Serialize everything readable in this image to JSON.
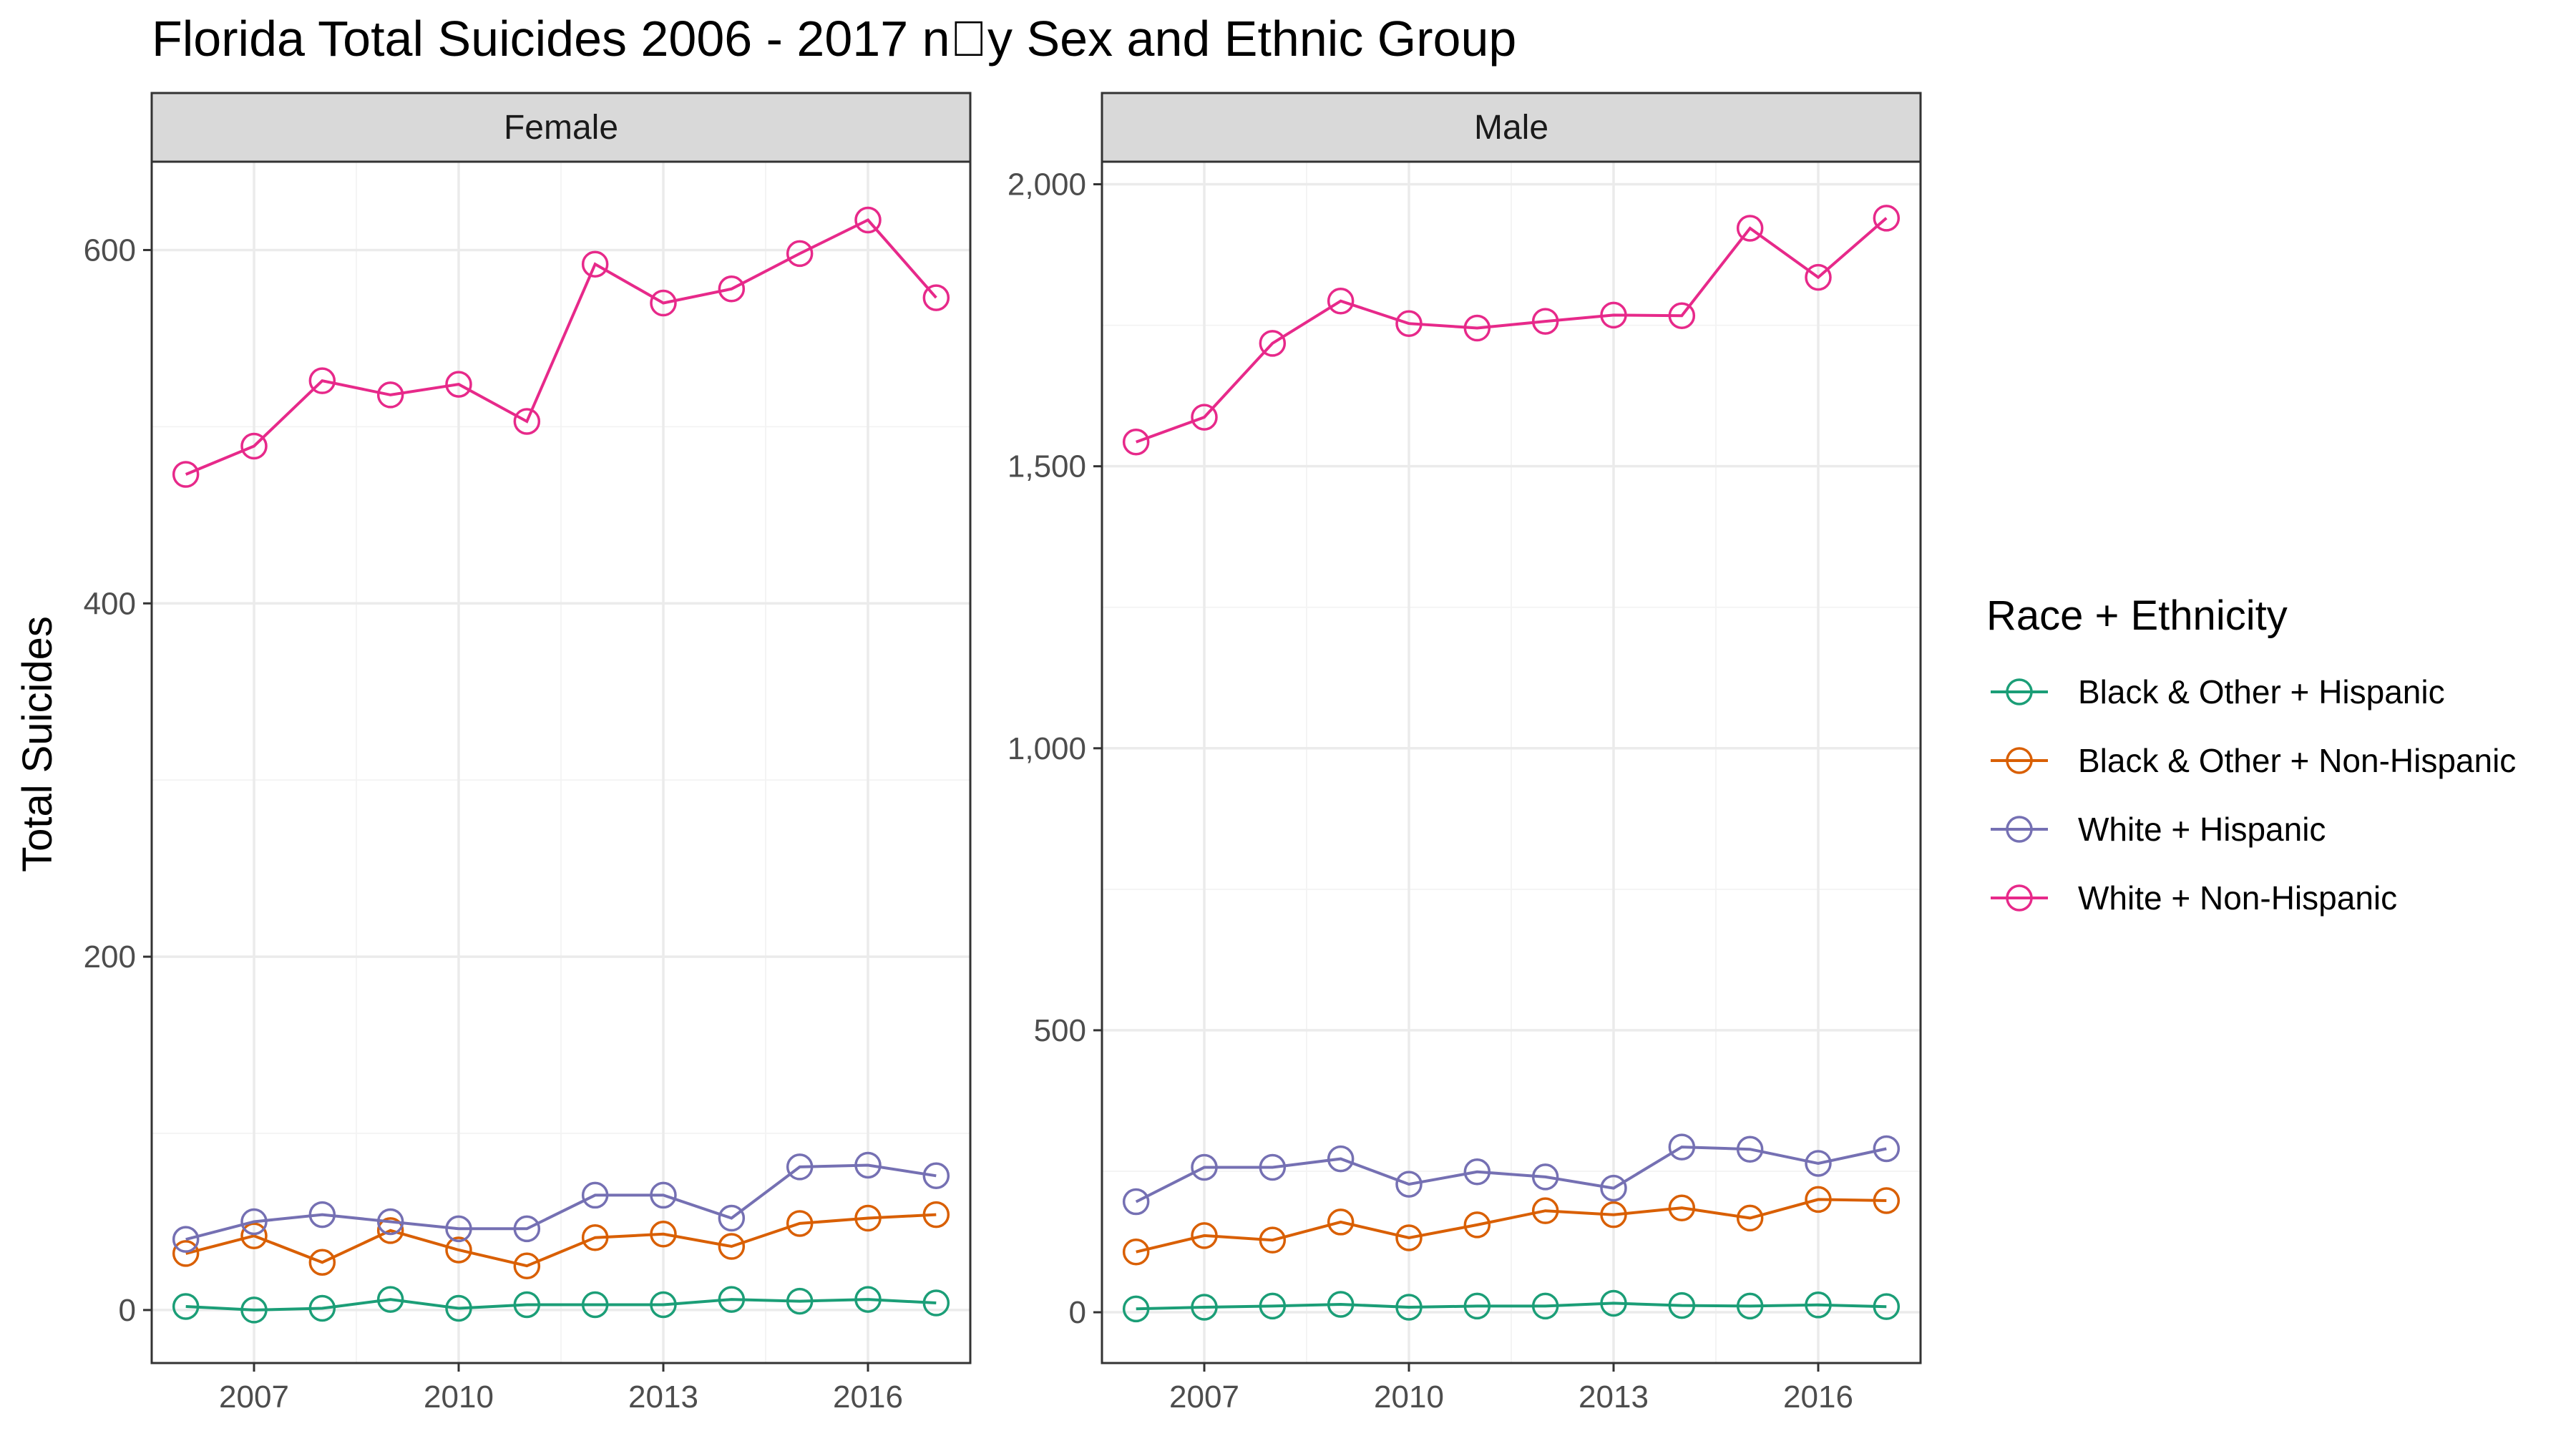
{
  "chart_data": {
    "type": "line",
    "title": "Florida Total Suicides 2006 - 2017 n\u0000y Sex and Ethnic Group",
    "ylabel": "Total Suicides",
    "xlabel": "",
    "x": [
      2006,
      2007,
      2008,
      2009,
      2010,
      2011,
      2012,
      2013,
      2014,
      2015,
      2016,
      2017
    ],
    "x_ticks": [
      2007,
      2010,
      2013,
      2016
    ],
    "x_tick_labels": [
      "2007",
      "2010",
      "2013",
      "2016"
    ],
    "xlim": [
      2005.5,
      2017.5
    ],
    "grid": true,
    "legend": {
      "title": "Race + Ethnicity",
      "position": "right",
      "entries": [
        {
          "name": "Black & Other + Hispanic",
          "color": "#1b9e77"
        },
        {
          "name": "Black & Other + Non-Hispanic",
          "color": "#d95f02"
        },
        {
          "name": "White + Hispanic",
          "color": "#7570b3"
        },
        {
          "name": "White + Non-Hispanic",
          "color": "#e7298a"
        }
      ]
    },
    "panels": [
      {
        "strip_label": "Female",
        "ylim": [
          -30,
          650
        ],
        "y_ticks": [
          0,
          200,
          400,
          600
        ],
        "y_tick_labels": [
          "0",
          "200",
          "400",
          "600"
        ],
        "series": [
          {
            "name": "Black & Other + Hispanic",
            "values": [
              2,
              0,
              1,
              6,
              1,
              3,
              3,
              3,
              6,
              5,
              6,
              4
            ]
          },
          {
            "name": "Black & Other + Non-Hispanic",
            "values": [
              32,
              42,
              27,
              45,
              34,
              25,
              41,
              43,
              36,
              49,
              52,
              54
            ]
          },
          {
            "name": "White + Hispanic",
            "values": [
              40,
              50,
              54,
              50,
              46,
              46,
              65,
              65,
              52,
              81,
              82,
              76
            ]
          },
          {
            "name": "White + Non-Hispanic",
            "values": [
              473,
              489,
              526,
              518,
              524,
              503,
              592,
              570,
              578,
              598,
              617,
              573
            ]
          }
        ]
      },
      {
        "strip_label": "Male",
        "ylim": [
          -90,
          2040
        ],
        "y_ticks": [
          0,
          500,
          1000,
          1500,
          2000
        ],
        "y_tick_labels": [
          "0",
          "500",
          "1,000",
          "1,500",
          "2,000"
        ],
        "series": [
          {
            "name": "Black & Other + Hispanic",
            "values": [
              6,
              9,
              11,
              14,
              9,
              11,
              11,
              16,
              12,
              11,
              13,
              10
            ]
          },
          {
            "name": "Black & Other + Non-Hispanic",
            "values": [
              107,
              136,
              128,
              160,
              132,
              155,
              180,
              173,
              185,
              167,
              200,
              198
            ]
          },
          {
            "name": "White + Hispanic",
            "values": [
              196,
              257,
              257,
              272,
              227,
              249,
              240,
              220,
              293,
              289,
              264,
              290
            ]
          },
          {
            "name": "White + Non-Hispanic",
            "values": [
              1543,
              1587,
              1718,
              1793,
              1753,
              1745,
              1757,
              1768,
              1767,
              1922,
              1835,
              1940
            ]
          }
        ]
      }
    ]
  }
}
